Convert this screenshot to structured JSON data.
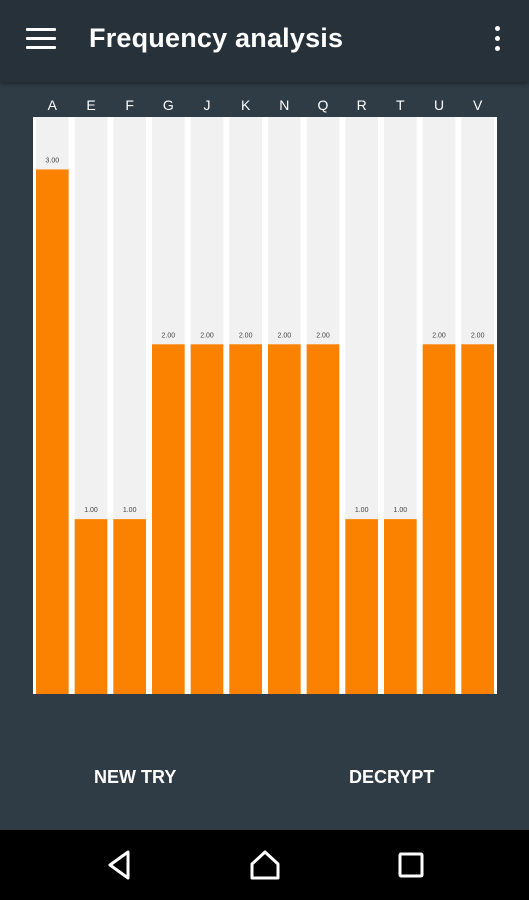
{
  "app": {
    "title": "Frequency analysis"
  },
  "icons": {
    "menu": "menu-icon",
    "overflow": "more-vert-icon"
  },
  "actions": {
    "new_try": "NEW TRY",
    "decrypt": "DECRYPT"
  },
  "navbar": {
    "back": "back-icon",
    "home": "home-icon",
    "recents": "recents-icon"
  },
  "colors": {
    "bar": "#fb8200",
    "track": "#f1f1f1",
    "background": "#2f3b45",
    "appbar": "#263139"
  },
  "chart_data": {
    "type": "bar",
    "categories": [
      "A",
      "E",
      "F",
      "G",
      "J",
      "K",
      "N",
      "Q",
      "R",
      "T",
      "U",
      "V"
    ],
    "values": [
      3,
      1,
      1,
      2,
      2,
      2,
      2,
      2,
      1,
      1,
      2,
      2
    ],
    "value_labels": [
      "3.00",
      "1.00",
      "1.00",
      "2.00",
      "2.00",
      "2.00",
      "2.00",
      "2.00",
      "1.00",
      "1.00",
      "2.00",
      "2.00"
    ],
    "ylim": [
      0,
      3.3
    ],
    "grid": false,
    "category_labels_position": "top"
  }
}
